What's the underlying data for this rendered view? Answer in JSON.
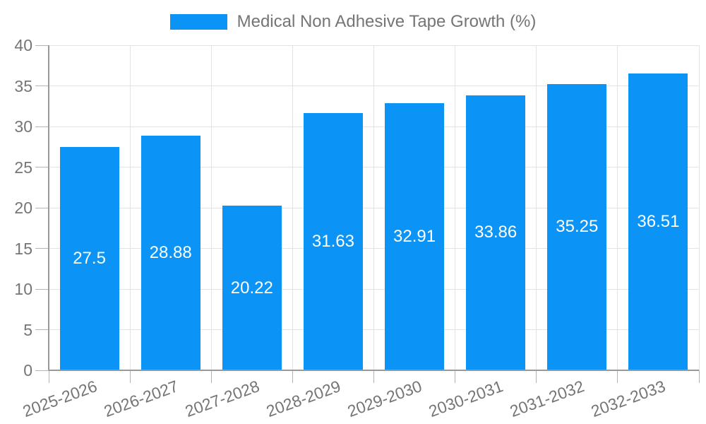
{
  "chart_data": {
    "type": "bar",
    "title": "Medical Non Adhesive Tape Growth (%)",
    "legend": {
      "label": "Medical Non Adhesive Tape Growth (%)",
      "position": "top"
    },
    "categories": [
      "2025-2026",
      "2026-2027",
      "2027-2028",
      "2028-2029",
      "2029-2030",
      "2030-2031",
      "2031-2032",
      "2032-2033"
    ],
    "series": [
      {
        "name": "Medical Non Adhesive Tape Growth (%)",
        "values": [
          27.5,
          28.88,
          20.22,
          31.63,
          32.91,
          33.86,
          35.25,
          36.51
        ]
      }
    ],
    "value_labels": [
      "27.5",
      "28.88",
      "20.22",
      "31.63",
      "32.91",
      "33.86",
      "35.25",
      "36.51"
    ],
    "xlabel": "",
    "ylabel": "",
    "ylim": [
      0,
      40
    ],
    "ytick_step": 5,
    "ytick_labels": [
      "0",
      "5",
      "10",
      "15",
      "20",
      "25",
      "30",
      "35",
      "40"
    ],
    "grid": true,
    "x_label_rotation_deg": -20,
    "value_label_position": "inside-center",
    "colors": {
      "bar": "#0b93f6",
      "value_label": "#ffffff",
      "axis_line": "#999999",
      "tick": "#b3b3b3",
      "grid_line": "#e3e3e3",
      "text": "#757575"
    }
  }
}
